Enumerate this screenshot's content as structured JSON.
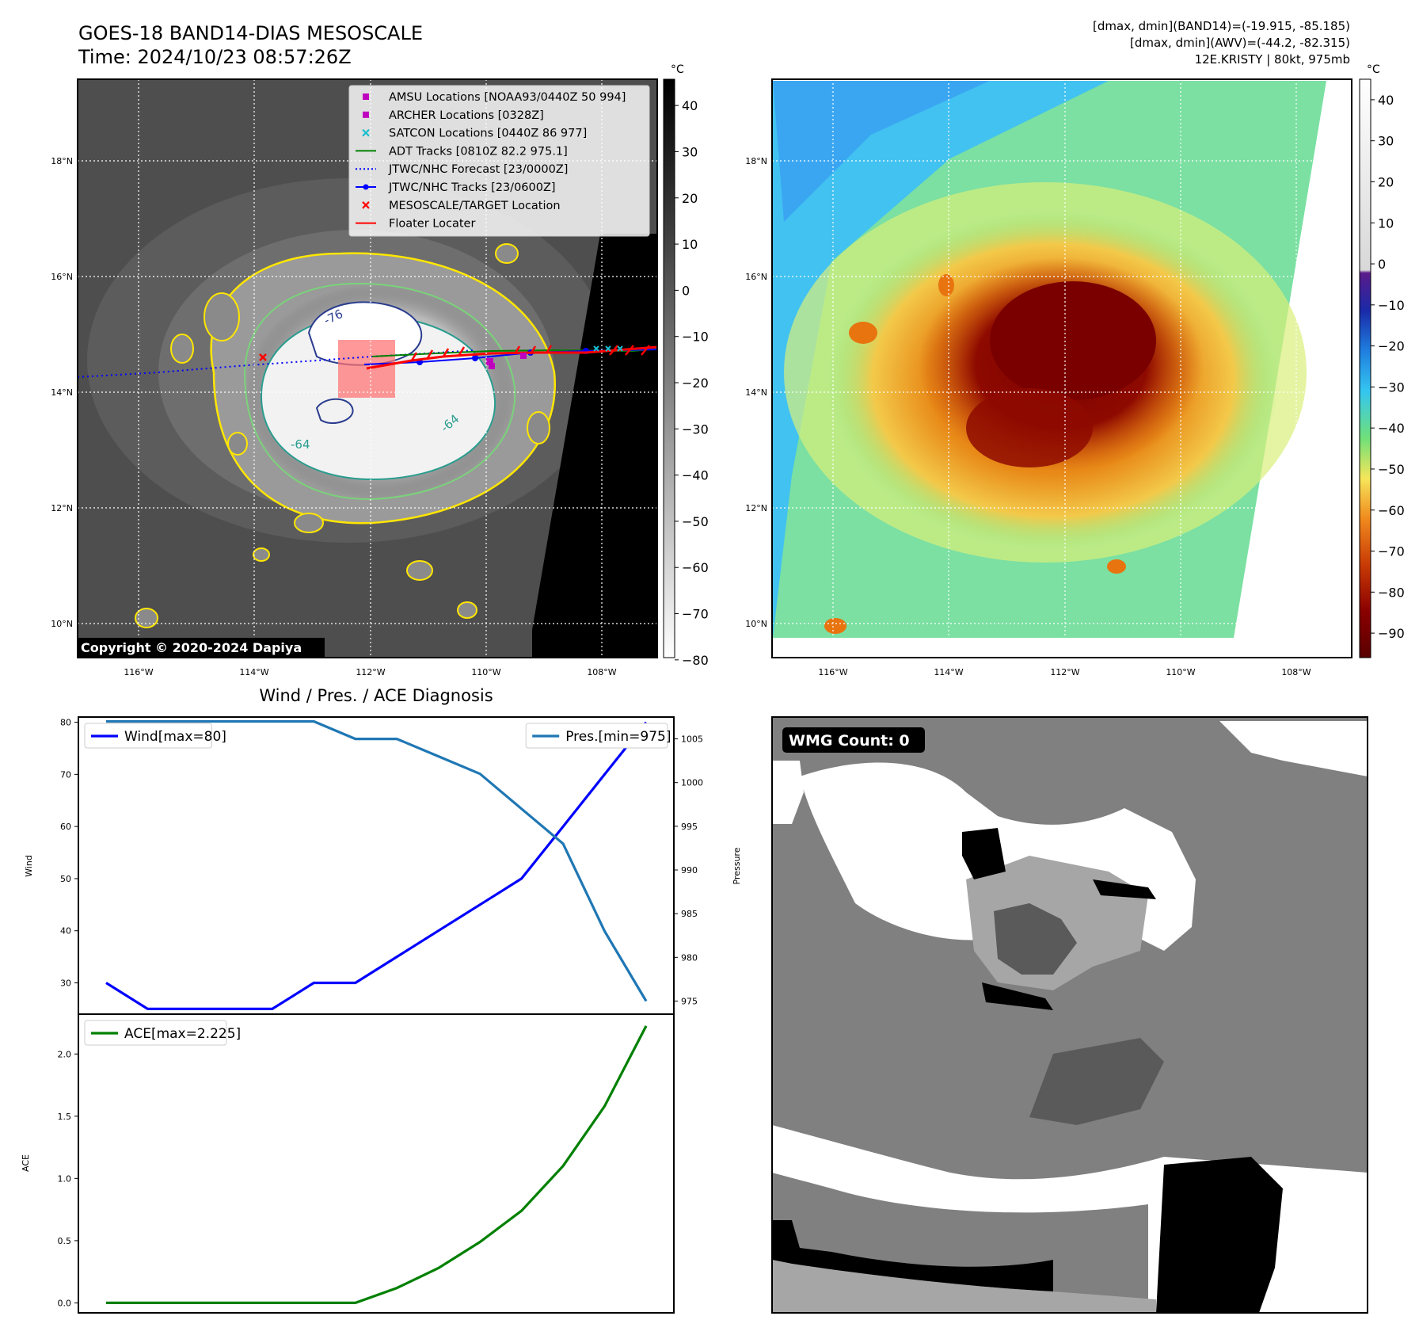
{
  "header": {
    "title_line1": "GOES-18 BAND14-DIAS MESOSCALE",
    "title_line2": "Time: 2024/10/23 08:57:26Z",
    "info_line1": "[dmax, dmin](BAND14)=(-19.915, -85.185)",
    "info_line2": "[dmax, dmin](AWV)=(-44.2, -82.315)",
    "info_line3": "12E.KRISTY | 80kt, 975mb"
  },
  "copyright": "Copyright © 2020-2024 Dapiya",
  "wmg_label": "WMG Count: 0",
  "map_axes": {
    "lat_labels": [
      "18°N",
      "16°N",
      "14°N",
      "12°N",
      "10°N"
    ],
    "lon_labels": [
      "116°W",
      "114°W",
      "112°W",
      "110°W",
      "108°W"
    ],
    "contour_labels": [
      "-76",
      "-64",
      "-64"
    ]
  },
  "colorbar_left": {
    "unit": "°C",
    "ticks": [
      "40",
      "30",
      "20",
      "10",
      "0",
      "−10",
      "−20",
      "−30",
      "−40",
      "−50",
      "−60",
      "−70",
      "−80"
    ]
  },
  "colorbar_right": {
    "unit": "°C",
    "ticks": [
      "40",
      "30",
      "20",
      "10",
      "0",
      "−10",
      "−20",
      "−30",
      "−40",
      "−50",
      "−60",
      "−70",
      "−80",
      "−90"
    ]
  },
  "legend": [
    {
      "label": "AMSU Locations [NOAA93/0440Z 50 994]",
      "marker": "square",
      "color": "#bf00bf"
    },
    {
      "label": "ARCHER Locations [0328Z]",
      "marker": "square",
      "color": "#bf00bf"
    },
    {
      "label": "SATCON Locations [0440Z 86 977]",
      "marker": "x",
      "color": "#17becf"
    },
    {
      "label": "ADT Tracks [0810Z 82.2 975.1]",
      "marker": "line",
      "color": "#008000"
    },
    {
      "label": "JTWC/NHC Forecast [23/0000Z]",
      "marker": "dotted",
      "color": "#0000ff"
    },
    {
      "label": "JTWC/NHC Tracks [23/0600Z]",
      "marker": "line-dot",
      "color": "#0000ff"
    },
    {
      "label": "MESOSCALE/TARGET Location",
      "marker": "x",
      "color": "#ff0000"
    },
    {
      "label": "Floater Locater",
      "marker": "line",
      "color": "#ff0000"
    }
  ],
  "chart_data": [
    {
      "type": "line",
      "title": "Wind / Pres. / ACE Diagnosis",
      "ylabel": "Wind",
      "y2label": "Pressure",
      "ylim": [
        24,
        81
      ],
      "y2lim": [
        973.5,
        1007.5
      ],
      "yticks": [
        "80",
        "70",
        "60",
        "50",
        "40",
        "30"
      ],
      "y2ticks": [
        "1005",
        "1000",
        "995",
        "990",
        "985",
        "980",
        "975"
      ],
      "x": [
        0,
        1,
        2,
        3,
        4,
        5,
        6,
        7,
        8,
        9,
        10,
        11,
        12,
        13
      ],
      "series": [
        {
          "name": "Wind[max=80]",
          "axis": "left",
          "color": "#0000ff",
          "values": [
            30,
            25,
            25,
            25,
            25,
            30,
            30,
            35,
            40,
            45,
            50,
            60,
            70,
            80
          ]
        },
        {
          "name": "Pres.[min=975]",
          "axis": "right",
          "color": "#1f77b4",
          "values": [
            1007,
            1007,
            1007,
            1007,
            1007,
            1007,
            1005,
            1005,
            1003,
            1001,
            997,
            993,
            983,
            975
          ]
        }
      ]
    },
    {
      "type": "line",
      "ylabel": "ACE",
      "ylim": [
        -0.08,
        2.32
      ],
      "yticks": [
        "2.0",
        "1.5",
        "1.0",
        "0.5",
        "0.0"
      ],
      "x": [
        0,
        1,
        2,
        3,
        4,
        5,
        6,
        7,
        8,
        9,
        10,
        11,
        12,
        13
      ],
      "series": [
        {
          "name": "ACE[max=2.225]",
          "color": "#008000",
          "values": [
            0,
            0,
            0,
            0,
            0,
            0,
            0,
            0.12,
            0.28,
            0.49,
            0.74,
            1.1,
            1.58,
            2.225
          ]
        }
      ]
    }
  ],
  "palette": {
    "axis": "#000000",
    "grid": "#ffffff",
    "ir_background": "#4a4a4a",
    "cold_contour": "#ffe600"
  }
}
